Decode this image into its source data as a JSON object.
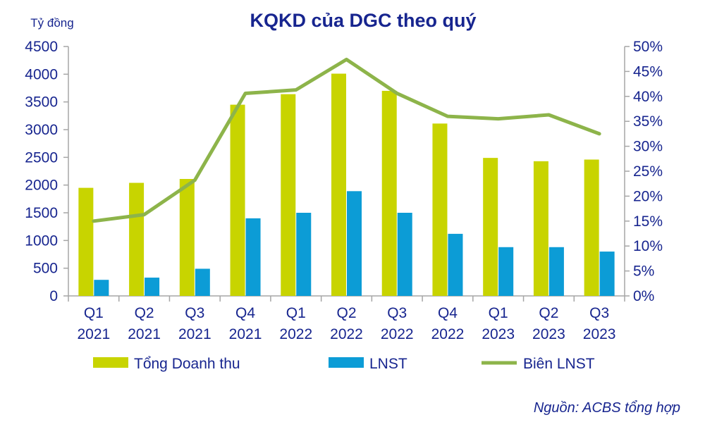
{
  "chart_data": {
    "type": "bar",
    "title": "KQKD của DGC theo quý",
    "ylabel": "Tỷ đồng",
    "categories": [
      [
        "Q1",
        "2021"
      ],
      [
        "Q2",
        "2021"
      ],
      [
        "Q3",
        "2021"
      ],
      [
        "Q4",
        "2021"
      ],
      [
        "Q1",
        "2022"
      ],
      [
        "Q2",
        "2022"
      ],
      [
        "Q3",
        "2022"
      ],
      [
        "Q4",
        "2022"
      ],
      [
        "Q1",
        "2023"
      ],
      [
        "Q2",
        "2023"
      ],
      [
        "Q3",
        "2023"
      ]
    ],
    "ylim": [
      0,
      4500
    ],
    "y_ticks": [
      0,
      500,
      1000,
      1500,
      2000,
      2500,
      3000,
      3500,
      4000,
      4500
    ],
    "y2lim": [
      0,
      50
    ],
    "y2_ticks": [
      "0%",
      "5%",
      "10%",
      "15%",
      "20%",
      "25%",
      "30%",
      "35%",
      "40%",
      "45%",
      "50%"
    ],
    "series": [
      {
        "name": "Tổng Doanh thu",
        "type": "bar",
        "axis": "left",
        "color": "#c8d400",
        "values": [
          1950,
          2040,
          2110,
          3450,
          3640,
          4010,
          3700,
          3110,
          2490,
          2430,
          2460
        ]
      },
      {
        "name": "LNST",
        "type": "bar",
        "axis": "left",
        "color": "#0c9cd6",
        "values": [
          290,
          330,
          490,
          1400,
          1500,
          1890,
          1500,
          1120,
          880,
          880,
          800
        ]
      },
      {
        "name": "Biên LNST",
        "type": "line",
        "axis": "right",
        "color": "#8db44a",
        "values": [
          15.0,
          16.3,
          23.2,
          40.6,
          41.3,
          47.4,
          40.6,
          36.0,
          35.5,
          36.3,
          32.5
        ]
      }
    ],
    "grid": false,
    "legend": "bottom"
  },
  "source": "Nguồn: ACBS tổng hợp"
}
